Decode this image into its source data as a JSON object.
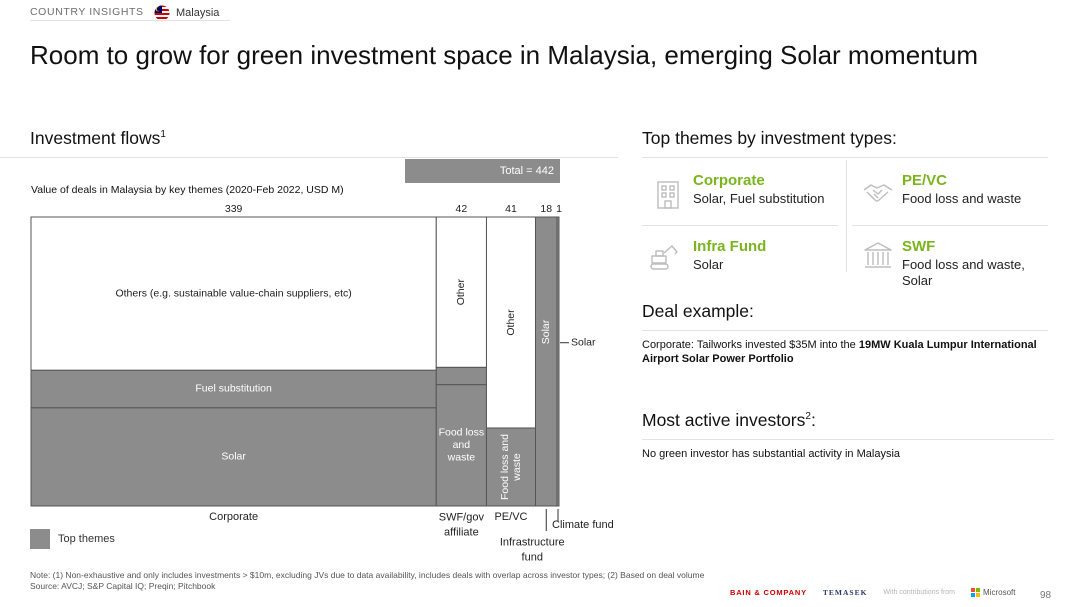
{
  "header": {
    "section_tag": "COUNTRY INSIGHTS",
    "country": "Malaysia"
  },
  "title": "Room to grow for green investment space in Malaysia, emerging Solar momentum",
  "left": {
    "heading": "Investment flows",
    "heading_sup": "1",
    "subtitle": "Value of deals in Malaysia by key themes (2020-Feb 2022, USD M)",
    "total_label": "Total = 442",
    "legend_label": "Top themes"
  },
  "chart_data": {
    "type": "marimekko",
    "total": 442,
    "columns": [
      {
        "key": "corporate",
        "label": "Corporate",
        "width_value": 339,
        "width_label": "339",
        "segments": [
          {
            "label": "Solar",
            "share": 0.34,
            "top_theme": true
          },
          {
            "label": "Fuel substitution",
            "share": 0.13,
            "top_theme": true
          },
          {
            "label": "Others (e.g. sustainable value-chain suppliers, etc)",
            "share": 0.53,
            "top_theme": false
          }
        ]
      },
      {
        "key": "swf",
        "label": "SWF/gov affiliate",
        "label_lines": [
          "SWF/gov",
          "affiliate"
        ],
        "width_value": 42,
        "width_label": "42",
        "segments": [
          {
            "label": "Food loss and waste",
            "label_lines": [
              "Food loss",
              "and",
              "waste"
            ],
            "share": 0.42,
            "top_theme": true
          },
          {
            "label": "Solar",
            "share": 0.06,
            "top_theme": true,
            "callout": true
          },
          {
            "label": "Other",
            "share": 0.52,
            "top_theme": false,
            "vertical": true
          }
        ]
      },
      {
        "key": "pevc",
        "label": "PE/VC",
        "width_value": 41,
        "width_label": "41",
        "segments": [
          {
            "label": "Food loss and waste",
            "label_lines": [
              "Food loss and",
              "waste"
            ],
            "share": 0.27,
            "top_theme": true,
            "vertical": true
          },
          {
            "label": "Other",
            "share": 0.73,
            "top_theme": false,
            "vertical": true
          }
        ]
      },
      {
        "key": "infra",
        "label": "Infrastructure fund",
        "label_lines": [
          "Infrastructure",
          "fund"
        ],
        "width_value": 18,
        "width_label": "18",
        "segments": [
          {
            "label": "Solar",
            "share": 1.0,
            "top_theme": true,
            "vertical": true
          }
        ]
      },
      {
        "key": "climate",
        "label": "Climate fund",
        "width_value": 1,
        "width_label": "1",
        "segments": [
          {
            "label": "Solar",
            "share": 1.0,
            "top_theme": true,
            "callout": true
          }
        ]
      }
    ],
    "colors": {
      "top_theme": "#8c8c8c",
      "other": "#ffffff",
      "border": "#555555"
    }
  },
  "right": {
    "themes_heading": "Top themes by investment types:",
    "themes": [
      {
        "name": "Corporate",
        "desc": "Solar, Fuel substitution",
        "icon": "building-icon"
      },
      {
        "name": "PE/VC",
        "desc": "Food loss and waste",
        "icon": "handshake-icon"
      },
      {
        "name": "Infra Fund",
        "desc": "Solar",
        "icon": "excavator-icon"
      },
      {
        "name": "SWF",
        "desc": "Food loss and waste, Solar",
        "icon": "government-building-icon"
      }
    ],
    "deal_heading": "Deal example:",
    "deal_prefix": "Corporate: Tailworks invested $35M into the ",
    "deal_bold": "19MW Kuala Lumpur International Airport Solar Power Portfolio",
    "investors_heading": "Most active investors",
    "investors_sup": "2",
    "investors_suffix": ":",
    "investors_text": "No green investor has substantial activity in Malaysia"
  },
  "footer": {
    "note": "Note: (1) Non-exhaustive and only includes investments > $10m, excluding JVs due to data availability, includes deals with overlap across investor types; (2) Based on deal volume",
    "source": "Source: AVCJ; S&P Capital IQ; Preqin; Pitchbook",
    "bain": "BAIN & COMPANY",
    "temasek": "TEMASEK",
    "contrib": "With contributions from",
    "microsoft": "Microsoft",
    "page": "98"
  },
  "accent_color": "#7ab51d"
}
